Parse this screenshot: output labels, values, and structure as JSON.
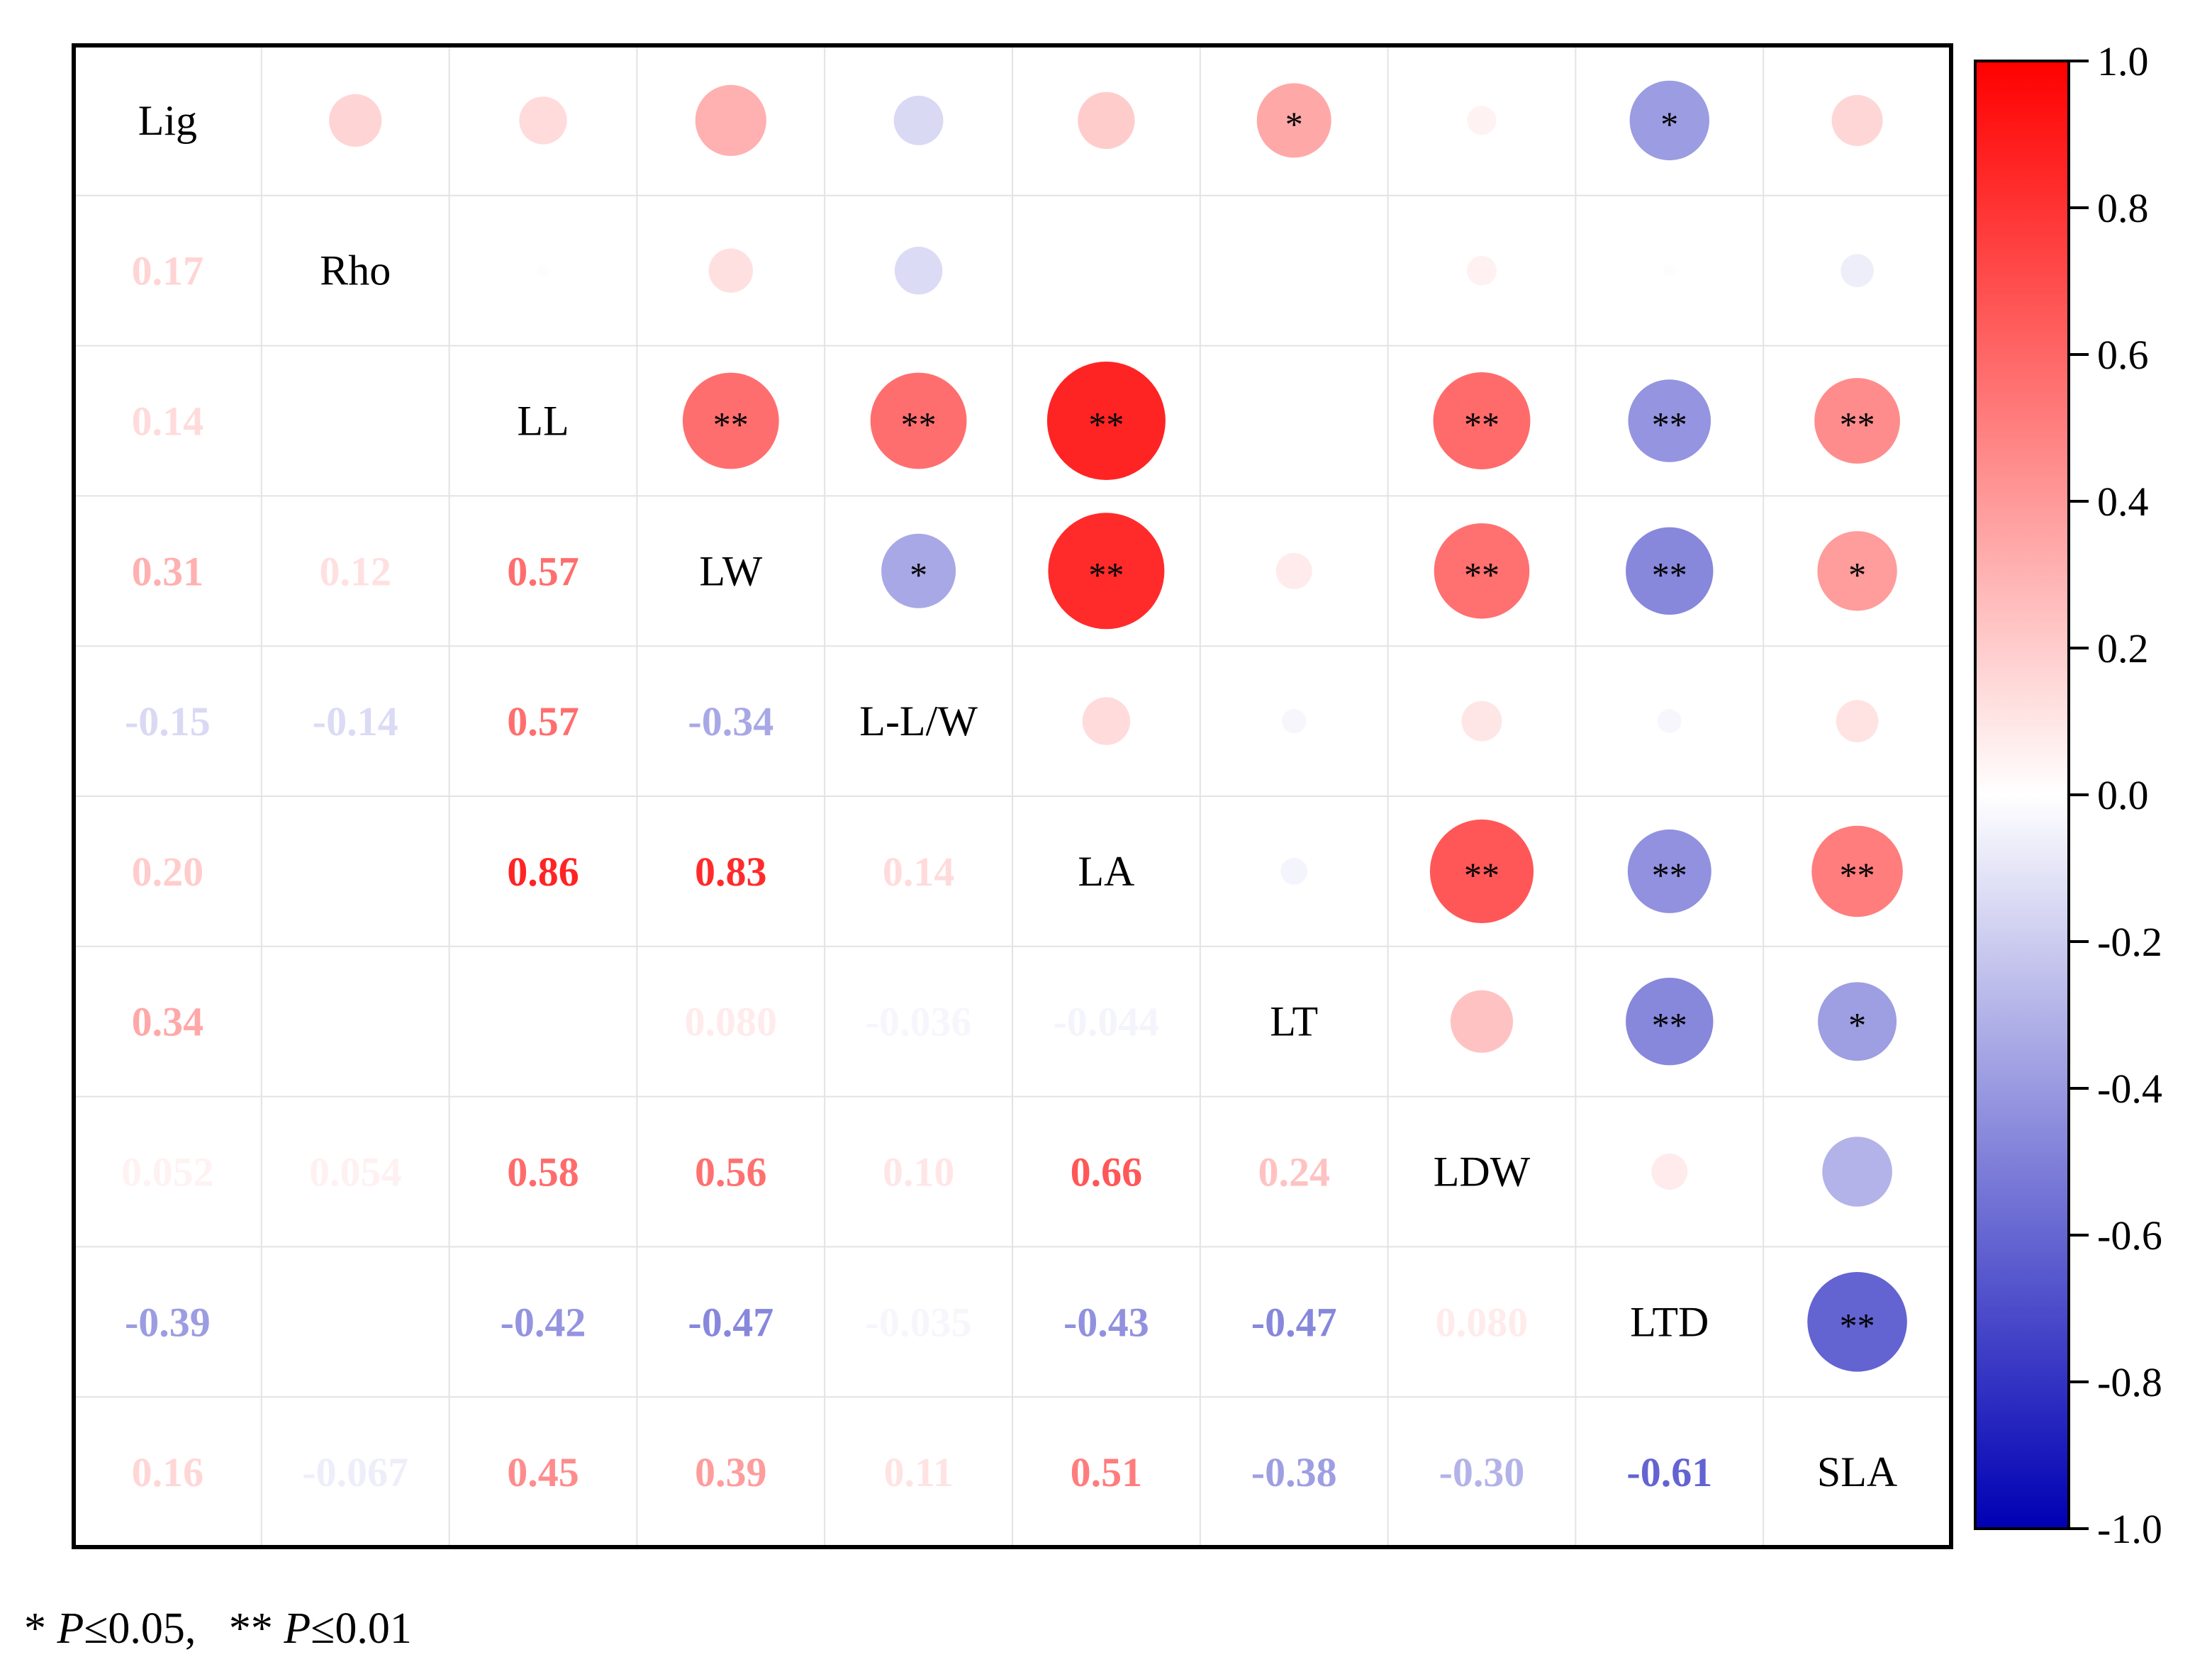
{
  "chart_data": {
    "type": "heatmap",
    "subtype": "correlation-matrix",
    "variables": [
      "Lig",
      "Rho",
      "LL",
      "LW",
      "L-L/W",
      "LA",
      "LT",
      "LDW",
      "LTD",
      "SLA"
    ],
    "values": [
      [
        1,
        0.17,
        0.14,
        0.31,
        -0.15,
        0.2,
        0.34,
        0.052,
        -0.39,
        0.16
      ],
      [
        0.17,
        1,
        0.01,
        0.12,
        -0.14,
        0.0,
        0.0,
        0.054,
        0.01,
        -0.067
      ],
      [
        0.14,
        0.01,
        1,
        0.57,
        0.57,
        0.86,
        0.0,
        0.58,
        -0.42,
        0.45
      ],
      [
        0.31,
        0.12,
        0.57,
        1,
        -0.34,
        0.83,
        0.08,
        0.56,
        -0.47,
        0.39
      ],
      [
        -0.15,
        -0.14,
        0.57,
        -0.34,
        1,
        0.14,
        -0.036,
        0.1,
        -0.035,
        0.11
      ],
      [
        0.2,
        0.0,
        0.86,
        0.83,
        0.14,
        1,
        -0.044,
        0.66,
        -0.43,
        0.51
      ],
      [
        0.34,
        0.0,
        0.0,
        0.08,
        -0.036,
        -0.044,
        1,
        0.24,
        -0.47,
        -0.38
      ],
      [
        0.052,
        0.054,
        0.58,
        0.56,
        0.1,
        0.66,
        0.24,
        1,
        0.08,
        -0.3
      ],
      [
        -0.39,
        0.01,
        -0.42,
        -0.47,
        -0.035,
        -0.43,
        -0.47,
        0.08,
        1,
        -0.61
      ],
      [
        0.16,
        -0.067,
        0.45,
        0.39,
        0.11,
        0.51,
        -0.38,
        -0.3,
        -0.61,
        1
      ]
    ],
    "lower_labels": [
      [
        "",
        "",
        "",
        "",
        "",
        "",
        "",
        "",
        "",
        ""
      ],
      [
        "0.17",
        "",
        "",
        "",
        "",
        "",
        "",
        "",
        "",
        ""
      ],
      [
        "0.14",
        "",
        "",
        "",
        "",
        "",
        "",
        "",
        "",
        ""
      ],
      [
        "0.31",
        "0.12",
        "0.57",
        "",
        "",
        "",
        "",
        "",
        "",
        ""
      ],
      [
        "-0.15",
        "-0.14",
        "0.57",
        "-0.34",
        "",
        "",
        "",
        "",
        "",
        ""
      ],
      [
        "0.20",
        "",
        "0.86",
        "0.83",
        "0.14",
        "",
        "",
        "",
        "",
        ""
      ],
      [
        "0.34",
        "",
        "",
        "0.080",
        "-0.036",
        "-0.044",
        "",
        "",
        "",
        ""
      ],
      [
        "0.052",
        "0.054",
        "0.58",
        "0.56",
        "0.10",
        "0.66",
        "0.24",
        "",
        "",
        ""
      ],
      [
        "-0.39",
        "",
        "-0.42",
        "-0.47",
        "-0.035",
        "-0.43",
        "-0.47",
        "0.080",
        "",
        ""
      ],
      [
        "0.16",
        "-0.067",
        "0.45",
        "0.39",
        "0.11",
        "0.51",
        "-0.38",
        "-0.30",
        "-0.61",
        ""
      ]
    ],
    "significance": [
      [
        "",
        "",
        "",
        "",
        "",
        "",
        "*",
        "",
        "*",
        ""
      ],
      [
        "",
        "",
        "",
        "",
        "",
        "",
        "",
        "",
        "",
        ""
      ],
      [
        "",
        "",
        "",
        "**",
        "**",
        "**",
        "",
        "**",
        "**",
        "**"
      ],
      [
        "",
        "",
        "",
        "",
        "*",
        "**",
        "",
        "**",
        "**",
        "*"
      ],
      [
        "",
        "",
        "",
        "",
        "",
        "",
        "",
        "",
        "",
        ""
      ],
      [
        "",
        "",
        "",
        "",
        "",
        "",
        "",
        "**",
        "**",
        "**"
      ],
      [
        "",
        "",
        "",
        "",
        "",
        "",
        "",
        "",
        "**",
        "*"
      ],
      [
        "",
        "",
        "",
        "",
        "",
        "",
        "",
        "",
        "",
        ""
      ],
      [
        "",
        "",
        "",
        "",
        "",
        "",
        "",
        "",
        "",
        "**"
      ],
      [
        "",
        "",
        "",
        "",
        "",
        "",
        "",
        "",
        "",
        ""
      ]
    ],
    "colorbar": {
      "range": [
        -1.0,
        1.0
      ],
      "ticks": [
        "1.0",
        "0.8",
        "0.6",
        "0.4",
        "0.2",
        "0.0",
        "-0.2",
        "-0.4",
        "-0.6",
        "-0.8",
        "-1.0"
      ],
      "colors": {
        "negative": "#0000b4",
        "neutral": "#ffffff",
        "positive": "#ff0000"
      }
    },
    "layout": "upper triangle: circles sized and colored by correlation; diagonal: variable names; lower triangle: coefficient values",
    "footnote": {
      "p1": {
        "mark": "*",
        "symbol": "P",
        "rel": "≤",
        "value": "0.05,"
      },
      "p2": {
        "mark": "**",
        "symbol": "P",
        "rel": "≤",
        "value": "0.01"
      }
    }
  }
}
